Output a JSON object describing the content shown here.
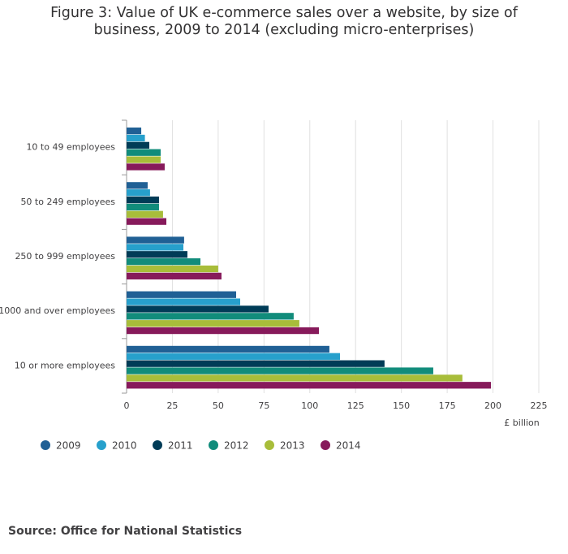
{
  "chart_data": {
    "type": "hbar",
    "title": "Figure 3: Value of UK e-commerce sales over a website, by size of business, 2009 to 2014 (excluding micro-enterprises)",
    "categories": [
      "10 to 49 employees",
      "50 to 249 employees",
      "250 to 999 employees",
      "1000 and over employees",
      "10 or more employees"
    ],
    "series": [
      {
        "name": "2009",
        "color": "#206095",
        "values": [
          8,
          11.5,
          31.4,
          59.8,
          110.7
        ]
      },
      {
        "name": "2010",
        "color": "#27a0cc",
        "values": [
          10,
          12.8,
          31,
          62,
          116.5
        ]
      },
      {
        "name": "2011",
        "color": "#003c57",
        "values": [
          12.4,
          17.7,
          33.2,
          77.5,
          140.8
        ]
      },
      {
        "name": "2012",
        "color": "#118c7b",
        "values": [
          18.6,
          17.7,
          40.3,
          91.2,
          167.4
        ]
      },
      {
        "name": "2013",
        "color": "#a8bd3a",
        "values": [
          18.6,
          19.9,
          50,
          94.3,
          183.3
        ]
      },
      {
        "name": "2014",
        "color": "#871a5b",
        "values": [
          20.8,
          21.7,
          51.8,
          105,
          198.9
        ]
      }
    ],
    "xlabel": "£ billion",
    "xlim": [
      0,
      225
    ],
    "xticks": [
      0,
      25,
      50,
      75,
      100,
      125,
      150,
      175,
      200,
      225
    ],
    "grid": true,
    "source": "Source: Office for National Statistics"
  }
}
